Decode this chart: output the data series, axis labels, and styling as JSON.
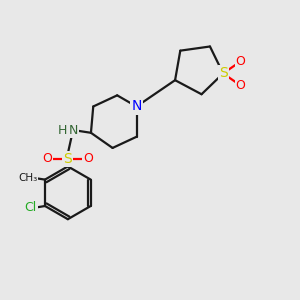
{
  "bg_color": "#e8e8e8",
  "bond_color": "#1a1a1a",
  "bond_lw": 1.6,
  "font_size": 9,
  "colors": {
    "N": "#0000ff",
    "NH": "#336633",
    "H": "#336633",
    "S": "#cccc00",
    "O": "#ff0000",
    "Cl": "#22aa22",
    "C": "#1a1a1a"
  }
}
